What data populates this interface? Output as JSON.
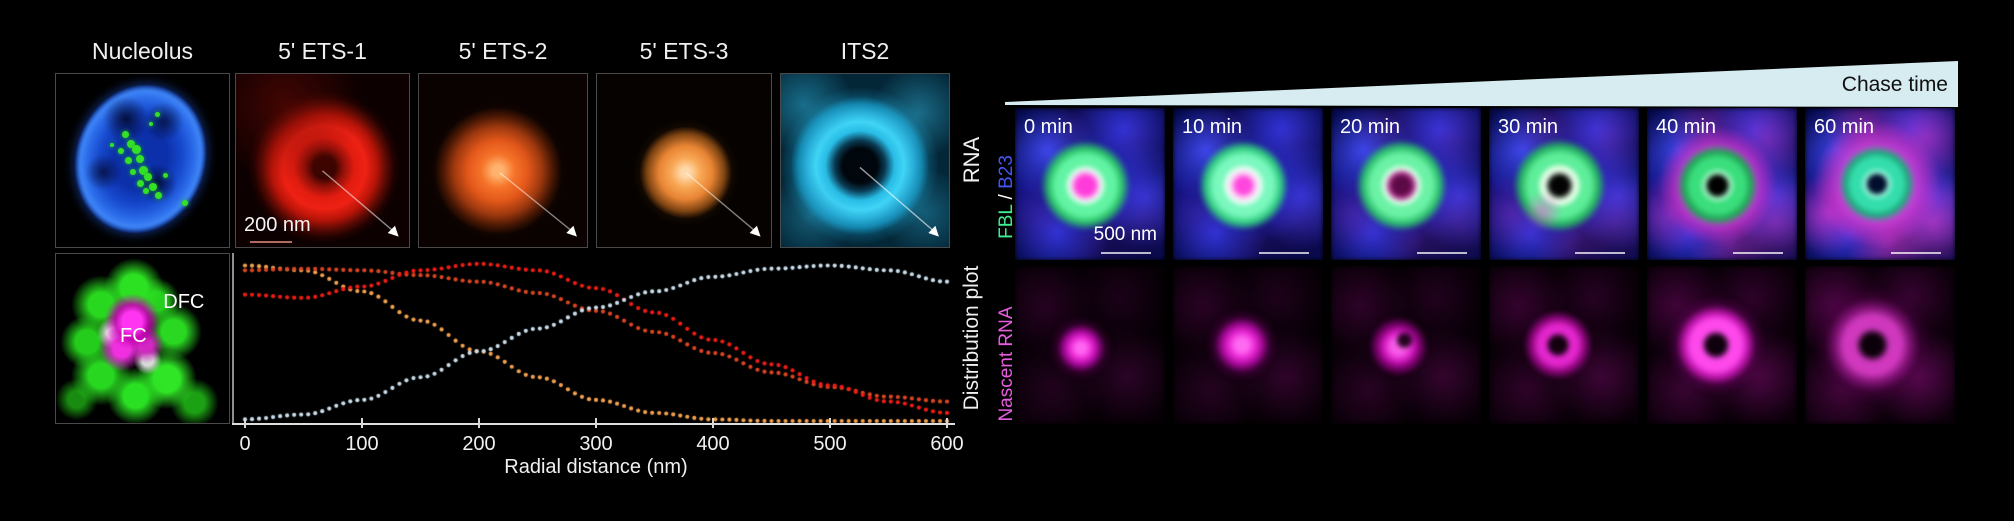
{
  "left": {
    "side_label_rna": "RNA",
    "side_label_plot": "Distribution plot",
    "panel_titles": [
      "Nucleolus",
      "5' ETS-1",
      "5' ETS-2",
      "5' ETS-3",
      "ITS2"
    ],
    "scale_bar_label": "200 nm",
    "dfc_label": "DFC",
    "fc_label": "FC"
  },
  "right": {
    "chase_label": "Chase time",
    "time_labels": [
      "0 min",
      "10 min",
      "20 min",
      "30 min",
      "40 min",
      "60 min"
    ],
    "row1_label": {
      "part1": "FBL",
      "sep": " / ",
      "part2": "B23"
    },
    "row2_label": "Nascent RNA",
    "scale_bar_label": "500 nm"
  },
  "chart_data": {
    "type": "scatter",
    "style": "dotted-curves",
    "title": "",
    "xlabel": "Radial distance (nm)",
    "ylabel": "",
    "x": [
      0,
      50,
      100,
      150,
      200,
      250,
      300,
      350,
      400,
      450,
      500,
      550,
      600
    ],
    "xticks": [
      0,
      100,
      200,
      300,
      400,
      500,
      600
    ],
    "xlim": [
      0,
      600
    ],
    "ylim": [
      0,
      1
    ],
    "grid": false,
    "legend": "none",
    "series": [
      {
        "name": "5' ETS-1",
        "color": "#ee1c14",
        "values": [
          0.78,
          0.76,
          0.83,
          0.93,
          0.97,
          0.93,
          0.82,
          0.67,
          0.5,
          0.35,
          0.22,
          0.12,
          0.05
        ]
      },
      {
        "name": "5' ETS-2",
        "color": "#da4520",
        "values": [
          0.93,
          0.94,
          0.93,
          0.9,
          0.86,
          0.79,
          0.68,
          0.55,
          0.42,
          0.3,
          0.21,
          0.15,
          0.12
        ]
      },
      {
        "name": "5' ETS-3",
        "color": "#f2a14d",
        "values": [
          0.96,
          0.93,
          0.8,
          0.62,
          0.43,
          0.27,
          0.13,
          0.05,
          0.01,
          0.0,
          0.0,
          0.0,
          0.0
        ]
      },
      {
        "name": "ITS2",
        "color": "#c9ddea",
        "values": [
          0.01,
          0.04,
          0.13,
          0.27,
          0.43,
          0.57,
          0.7,
          0.8,
          0.89,
          0.94,
          0.96,
          0.93,
          0.86
        ]
      }
    ]
  },
  "colors": {
    "background": "#000000",
    "nucleus_blue": "#1648cc",
    "nucleoli_green": "#35e028",
    "ets1_red": "#ee1c14",
    "ets2_orange_red": "#e2571a",
    "ets3_orange": "#f2a14d",
    "its2_cyan": "#34c8f0",
    "dfc_green": "#2cd822",
    "fc_magenta": "#f030e0",
    "fbl_green": "#3df08f",
    "b23_blue": "#4356f5",
    "nascent_magenta": "#e62cd8",
    "wedge_fill": "#d7ecf0"
  }
}
